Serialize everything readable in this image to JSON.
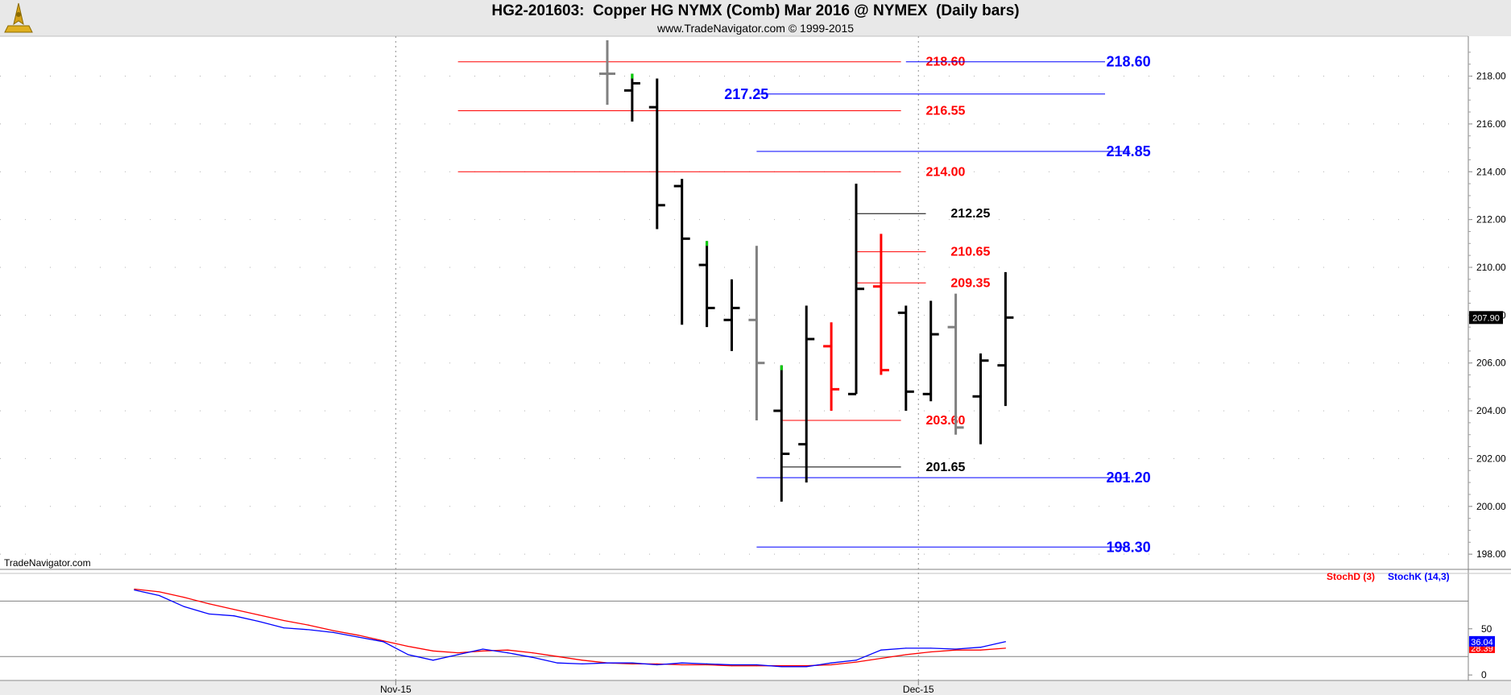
{
  "header": {
    "title": "HG2-201603:  Copper HG NYMX (Comb) Mar 2016 @ NYMEX  (Daily bars)",
    "subtitle": "www.TradeNavigator.com © 1999-2015",
    "logo_icon": "tradenavigator-compass-logo-icon"
  },
  "watermark": "TradeNavigator.com",
  "colors": {
    "black_bar": "#000000",
    "gray_bar": "#808080",
    "red_bar": "#ff0000",
    "green_tick": "#00cc00",
    "red_level": "#ff0000",
    "blue_level": "#0000ff",
    "black_level": "#000000",
    "stoch_d": "#ff0000",
    "stoch_k": "#0000ff"
  },
  "chart_data": [
    {
      "type": "ohlc",
      "ylim": [
        197.5,
        219.5
      ],
      "y_ticks": [
        198,
        200,
        202,
        204,
        206,
        208,
        210,
        212,
        214,
        216,
        218
      ],
      "y_tick_labels": [
        "198.00",
        "200.00",
        "202.00",
        "204.00",
        "206.00",
        "208.00",
        "210.00",
        "212.00",
        "214.00",
        "216.00",
        "218.00"
      ],
      "x_labels": [
        {
          "label": "Nov-15",
          "bar": -8.5
        },
        {
          "label": "Dec-15",
          "bar": 12.5
        }
      ],
      "grid": true,
      "last_price": {
        "value": 207.9,
        "label": "207.90"
      },
      "bars": [
        {
          "i": 0,
          "o": 218.1,
          "h": 219.5,
          "l": 216.8,
          "c": 218.1,
          "color": "gray"
        },
        {
          "i": 1,
          "o": 217.4,
          "h": 218.1,
          "l": 216.1,
          "c": 217.7,
          "color": "black",
          "marker": "top"
        },
        {
          "i": 2,
          "o": 216.7,
          "h": 217.9,
          "l": 211.6,
          "c": 212.6,
          "color": "black"
        },
        {
          "i": 3,
          "o": 213.4,
          "h": 213.7,
          "l": 207.6,
          "c": 211.2,
          "color": "black"
        },
        {
          "i": 4,
          "o": 210.1,
          "h": 211.1,
          "l": 207.5,
          "c": 208.3,
          "color": "black",
          "marker": "top"
        },
        {
          "i": 5,
          "o": 207.8,
          "h": 209.5,
          "l": 206.5,
          "c": 208.3,
          "color": "black"
        },
        {
          "i": 6,
          "o": 207.8,
          "h": 210.9,
          "l": 203.6,
          "c": 206.0,
          "color": "gray"
        },
        {
          "i": 7,
          "o": 204.0,
          "h": 205.9,
          "l": 200.2,
          "c": 202.2,
          "color": "black",
          "marker": "top"
        },
        {
          "i": 8,
          "o": 202.6,
          "h": 208.4,
          "l": 201.0,
          "c": 207.0,
          "color": "black"
        },
        {
          "i": 9,
          "o": 206.7,
          "h": 207.7,
          "l": 204.0,
          "c": 204.9,
          "color": "red"
        },
        {
          "i": 10,
          "o": 204.7,
          "h": 213.5,
          "l": 204.7,
          "c": 209.1,
          "color": "black"
        },
        {
          "i": 11,
          "o": 209.2,
          "h": 211.4,
          "l": 205.5,
          "c": 205.7,
          "color": "red"
        },
        {
          "i": 12,
          "o": 208.1,
          "h": 208.4,
          "l": 204.0,
          "c": 204.8,
          "color": "black"
        },
        {
          "i": 13,
          "o": 204.7,
          "h": 208.6,
          "l": 204.4,
          "c": 207.2,
          "color": "black"
        },
        {
          "i": 14,
          "o": 207.5,
          "h": 208.9,
          "l": 203.0,
          "c": 203.3,
          "color": "gray"
        },
        {
          "i": 15,
          "o": 204.6,
          "h": 206.4,
          "l": 202.6,
          "c": 206.1,
          "color": "black"
        },
        {
          "i": 16,
          "o": 205.9,
          "h": 209.8,
          "l": 204.2,
          "c": 207.9,
          "color": "black"
        }
      ],
      "levels": [
        {
          "value": 218.6,
          "label": "218.60",
          "color": "red",
          "from_bar": -6.0,
          "to_bar": 11.8,
          "label_bar": 12.8
        },
        {
          "value": 216.55,
          "label": "216.55",
          "color": "red",
          "from_bar": -6.0,
          "to_bar": 11.8,
          "label_bar": 12.8
        },
        {
          "value": 214.0,
          "label": "214.00",
          "color": "red",
          "from_bar": -6.0,
          "to_bar": 11.8,
          "label_bar": 12.8
        },
        {
          "value": 210.65,
          "label": "210.65",
          "color": "red",
          "from_bar": 10.0,
          "to_bar": 12.8,
          "label_bar": 13.8
        },
        {
          "value": 209.35,
          "label": "209.35",
          "color": "red",
          "from_bar": 10.0,
          "to_bar": 12.8,
          "label_bar": 13.8
        },
        {
          "value": 203.6,
          "label": "203.60",
          "color": "red",
          "from_bar": 7.0,
          "to_bar": 11.8,
          "label_bar": 12.8
        },
        {
          "value": 212.25,
          "label": "212.25",
          "color": "black",
          "from_bar": 10.0,
          "to_bar": 12.8,
          "label_bar": 13.8
        },
        {
          "value": 201.65,
          "label": "201.65",
          "color": "black",
          "from_bar": 7.0,
          "to_bar": 11.8,
          "label_bar": 12.8
        },
        {
          "value": 218.6,
          "label": "218.60",
          "color": "blue",
          "from_bar": 12.0,
          "to_bar": 20.0,
          "label_bar": 20.05
        },
        {
          "value": 217.25,
          "label": "217.25",
          "color": "blue",
          "from_bar": 6.0,
          "to_bar": 20.0,
          "label_bar": 4.7
        },
        {
          "value": 214.85,
          "label": "214.85",
          "color": "blue",
          "from_bar": 6.0,
          "to_bar": 21.0,
          "label_bar": 20.05
        },
        {
          "value": 201.2,
          "label": "201.20",
          "color": "blue",
          "from_bar": 6.0,
          "to_bar": 21.0,
          "label_bar": 20.05
        },
        {
          "value": 198.3,
          "label": "198.30",
          "color": "blue",
          "from_bar": 6.0,
          "to_bar": 21.0,
          "label_bar": 20.05
        }
      ]
    },
    {
      "type": "line",
      "ylim": [
        -6,
        110
      ],
      "y_ticks": [
        0,
        50
      ],
      "y_tick_labels": [
        "0",
        "50"
      ],
      "ref_lines": [
        20,
        80
      ],
      "x": [
        -19,
        -18,
        -17,
        -16,
        -15,
        -14,
        -13,
        -12,
        -11,
        -10,
        -9,
        -8,
        -7,
        -6,
        -5,
        -4,
        -3,
        -2,
        -1,
        0,
        1,
        2,
        3,
        4,
        5,
        6,
        7,
        8,
        9,
        10,
        11,
        12,
        13,
        14,
        15,
        16
      ],
      "series": [
        {
          "name": "StochD (3)",
          "color": "red",
          "legend": "StochD (3)",
          "last_label": "28.39",
          "values": [
            93,
            90,
            84,
            77,
            71,
            65,
            59,
            54,
            48,
            43,
            37,
            31,
            26,
            24,
            26,
            27,
            24,
            20,
            16,
            13,
            12,
            12,
            11,
            11,
            10,
            10,
            10,
            10,
            11,
            14,
            18,
            22,
            25,
            27,
            27,
            29
          ]
        },
        {
          "name": "StochK (14,3)",
          "color": "blue",
          "legend": "StochK (14,3)",
          "last_label": "36.04",
          "values": [
            92,
            86,
            74,
            66,
            64,
            58,
            51,
            49,
            46,
            41,
            36,
            22,
            16,
            22,
            28,
            24,
            19,
            13,
            12,
            13,
            13,
            11,
            13,
            12,
            11,
            11,
            9,
            9,
            13,
            16,
            27,
            29,
            29,
            28,
            30,
            36
          ]
        }
      ]
    }
  ]
}
